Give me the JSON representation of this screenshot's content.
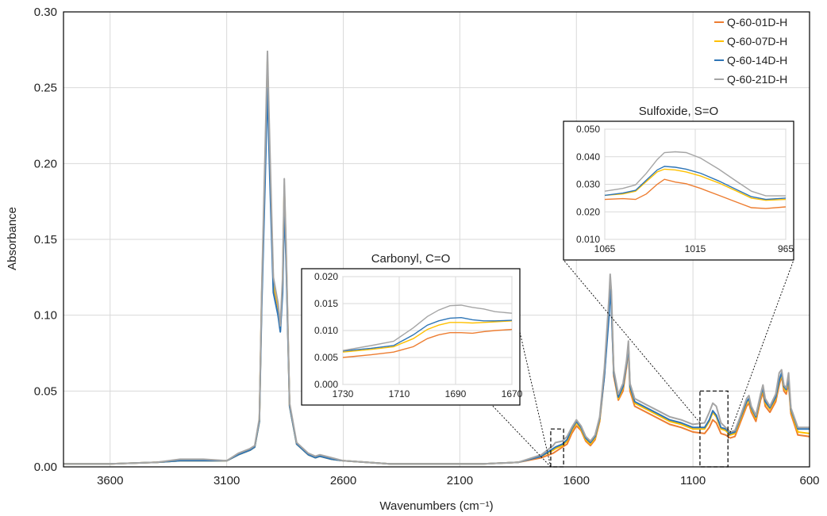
{
  "chart_data": {
    "type": "line",
    "xlabel": "Wavenumbers (cm⁻¹)",
    "ylabel": "Absorbance",
    "xlim": [
      3800,
      600
    ],
    "ylim": [
      0,
      0.3
    ],
    "xticks": [
      3600,
      3100,
      2600,
      2100,
      1600,
      1100,
      600
    ],
    "xtick_labels": [
      "3600",
      "3100",
      "2600",
      "2100",
      "1600",
      "1100",
      "600"
    ],
    "yticks": [
      0,
      0.05,
      0.1,
      0.15,
      0.2,
      0.25,
      0.3
    ],
    "ytick_labels": [
      "0.00",
      "0.05",
      "0.10",
      "0.15",
      "0.20",
      "0.25",
      "0.30"
    ],
    "grid": true,
    "legend_position": "top-right",
    "colors": [
      "#ED7D31",
      "#FFC000",
      "#2E75B6",
      "#A5A5A5"
    ],
    "series": [
      {
        "name": "Q-60-01D-H",
        "color": "#ED7D31",
        "x": [
          3800,
          3600,
          3400,
          3300,
          3200,
          3100,
          3050,
          3000,
          2980,
          2960,
          2950,
          2935,
          2925,
          2915,
          2900,
          2880,
          2870,
          2860,
          2853,
          2845,
          2830,
          2800,
          2750,
          2720,
          2700,
          2650,
          2600,
          2400,
          2200,
          2000,
          1850,
          1750,
          1700,
          1690,
          1660,
          1640,
          1620,
          1600,
          1580,
          1560,
          1540,
          1520,
          1500,
          1480,
          1460,
          1455,
          1450,
          1440,
          1420,
          1400,
          1385,
          1377,
          1370,
          1350,
          1300,
          1250,
          1200,
          1150,
          1100,
          1050,
          1030,
          1015,
          1000,
          980,
          960,
          940,
          920,
          900,
          870,
          860,
          850,
          830,
          810,
          800,
          790,
          770,
          745,
          730,
          720,
          710,
          700,
          690,
          680,
          650,
          600
        ],
        "y": [
          0.002,
          0.002,
          0.003,
          0.004,
          0.004,
          0.004,
          0.008,
          0.011,
          0.013,
          0.03,
          0.11,
          0.2,
          0.265,
          0.2,
          0.12,
          0.105,
          0.09,
          0.12,
          0.182,
          0.14,
          0.04,
          0.015,
          0.008,
          0.006,
          0.007,
          0.005,
          0.004,
          0.002,
          0.002,
          0.002,
          0.003,
          0.006,
          0.009,
          0.01,
          0.013,
          0.015,
          0.022,
          0.027,
          0.024,
          0.017,
          0.014,
          0.018,
          0.03,
          0.06,
          0.105,
          0.12,
          0.11,
          0.06,
          0.044,
          0.05,
          0.066,
          0.078,
          0.05,
          0.04,
          0.036,
          0.032,
          0.028,
          0.026,
          0.023,
          0.022,
          0.026,
          0.031,
          0.029,
          0.022,
          0.021,
          0.019,
          0.02,
          0.028,
          0.04,
          0.042,
          0.036,
          0.03,
          0.044,
          0.049,
          0.04,
          0.036,
          0.043,
          0.054,
          0.06,
          0.05,
          0.048,
          0.055,
          0.035,
          0.021,
          0.02
        ]
      },
      {
        "name": "Q-60-07D-H",
        "color": "#FFC000",
        "x": [
          3800,
          3600,
          3400,
          3300,
          3200,
          3100,
          3050,
          3000,
          2980,
          2960,
          2950,
          2935,
          2925,
          2915,
          2900,
          2880,
          2870,
          2860,
          2853,
          2845,
          2830,
          2800,
          2750,
          2720,
          2700,
          2650,
          2600,
          2400,
          2200,
          2000,
          1850,
          1750,
          1700,
          1690,
          1660,
          1640,
          1620,
          1600,
          1580,
          1560,
          1540,
          1520,
          1500,
          1480,
          1460,
          1455,
          1450,
          1440,
          1420,
          1400,
          1385,
          1377,
          1370,
          1350,
          1300,
          1250,
          1200,
          1150,
          1100,
          1050,
          1030,
          1015,
          1000,
          980,
          960,
          940,
          920,
          900,
          870,
          860,
          850,
          830,
          810,
          800,
          790,
          770,
          745,
          730,
          720,
          710,
          700,
          690,
          680,
          650,
          600
        ],
        "y": [
          0.002,
          0.002,
          0.003,
          0.004,
          0.004,
          0.004,
          0.008,
          0.011,
          0.013,
          0.03,
          0.112,
          0.202,
          0.268,
          0.202,
          0.121,
          0.106,
          0.091,
          0.121,
          0.185,
          0.141,
          0.04,
          0.015,
          0.008,
          0.006,
          0.007,
          0.005,
          0.004,
          0.002,
          0.002,
          0.002,
          0.003,
          0.007,
          0.011,
          0.012,
          0.014,
          0.017,
          0.024,
          0.029,
          0.025,
          0.018,
          0.015,
          0.019,
          0.031,
          0.062,
          0.108,
          0.122,
          0.112,
          0.062,
          0.045,
          0.052,
          0.068,
          0.08,
          0.052,
          0.042,
          0.038,
          0.034,
          0.03,
          0.028,
          0.025,
          0.025,
          0.03,
          0.036,
          0.033,
          0.025,
          0.024,
          0.021,
          0.022,
          0.03,
          0.042,
          0.044,
          0.038,
          0.032,
          0.046,
          0.051,
          0.042,
          0.038,
          0.045,
          0.056,
          0.061,
          0.052,
          0.05,
          0.057,
          0.037,
          0.023,
          0.022
        ]
      },
      {
        "name": "Q-60-14D-H",
        "color": "#2E75B6",
        "x": [
          3800,
          3600,
          3400,
          3300,
          3200,
          3100,
          3050,
          3000,
          2980,
          2960,
          2950,
          2935,
          2925,
          2915,
          2900,
          2880,
          2870,
          2860,
          2853,
          2845,
          2830,
          2800,
          2750,
          2720,
          2700,
          2650,
          2600,
          2400,
          2200,
          2000,
          1850,
          1750,
          1700,
          1690,
          1660,
          1640,
          1620,
          1600,
          1580,
          1560,
          1540,
          1520,
          1500,
          1480,
          1460,
          1455,
          1450,
          1440,
          1420,
          1400,
          1385,
          1377,
          1370,
          1350,
          1300,
          1250,
          1200,
          1150,
          1100,
          1050,
          1030,
          1015,
          1000,
          980,
          960,
          940,
          920,
          900,
          870,
          860,
          850,
          830,
          810,
          800,
          790,
          770,
          745,
          730,
          720,
          710,
          700,
          690,
          680,
          650,
          600
        ],
        "y": [
          0.002,
          0.002,
          0.003,
          0.004,
          0.004,
          0.004,
          0.008,
          0.011,
          0.013,
          0.03,
          0.105,
          0.19,
          0.25,
          0.19,
          0.115,
          0.1,
          0.089,
          0.115,
          0.172,
          0.135,
          0.04,
          0.015,
          0.008,
          0.006,
          0.007,
          0.005,
          0.004,
          0.002,
          0.002,
          0.002,
          0.003,
          0.007,
          0.012,
          0.013,
          0.015,
          0.018,
          0.025,
          0.03,
          0.026,
          0.019,
          0.016,
          0.02,
          0.032,
          0.06,
          0.1,
          0.117,
          0.106,
          0.062,
          0.046,
          0.053,
          0.068,
          0.08,
          0.053,
          0.043,
          0.039,
          0.035,
          0.031,
          0.029,
          0.026,
          0.026,
          0.031,
          0.037,
          0.034,
          0.026,
          0.025,
          0.022,
          0.023,
          0.031,
          0.043,
          0.045,
          0.039,
          0.033,
          0.047,
          0.052,
          0.043,
          0.039,
          0.046,
          0.057,
          0.062,
          0.053,
          0.051,
          0.058,
          0.038,
          0.025,
          0.025
        ]
      },
      {
        "name": "Q-60-21D-H",
        "color": "#A5A5A5",
        "x": [
          3800,
          3600,
          3400,
          3300,
          3200,
          3100,
          3050,
          3000,
          2980,
          2960,
          2950,
          2935,
          2925,
          2915,
          2900,
          2880,
          2870,
          2860,
          2853,
          2845,
          2830,
          2800,
          2750,
          2720,
          2700,
          2650,
          2600,
          2400,
          2200,
          2000,
          1850,
          1750,
          1700,
          1690,
          1660,
          1640,
          1620,
          1600,
          1580,
          1560,
          1540,
          1520,
          1500,
          1480,
          1460,
          1455,
          1450,
          1440,
          1420,
          1400,
          1385,
          1377,
          1370,
          1350,
          1300,
          1250,
          1200,
          1150,
          1100,
          1050,
          1030,
          1015,
          1000,
          980,
          960,
          940,
          920,
          900,
          870,
          860,
          850,
          830,
          810,
          800,
          790,
          770,
          745,
          730,
          720,
          710,
          700,
          690,
          680,
          650,
          600
        ],
        "y": [
          0.002,
          0.002,
          0.003,
          0.005,
          0.005,
          0.004,
          0.009,
          0.012,
          0.014,
          0.032,
          0.115,
          0.21,
          0.274,
          0.21,
          0.125,
          0.108,
          0.093,
          0.125,
          0.19,
          0.145,
          0.042,
          0.016,
          0.009,
          0.007,
          0.008,
          0.006,
          0.004,
          0.002,
          0.002,
          0.002,
          0.003,
          0.008,
          0.014,
          0.016,
          0.017,
          0.02,
          0.026,
          0.031,
          0.027,
          0.02,
          0.017,
          0.021,
          0.033,
          0.065,
          0.112,
          0.127,
          0.116,
          0.064,
          0.048,
          0.055,
          0.07,
          0.083,
          0.055,
          0.045,
          0.041,
          0.037,
          0.033,
          0.031,
          0.028,
          0.029,
          0.036,
          0.042,
          0.04,
          0.029,
          0.026,
          0.023,
          0.024,
          0.032,
          0.045,
          0.047,
          0.04,
          0.034,
          0.048,
          0.054,
          0.045,
          0.04,
          0.048,
          0.062,
          0.064,
          0.054,
          0.052,
          0.062,
          0.039,
          0.026,
          0.026
        ]
      }
    ],
    "insets": [
      {
        "title": "Carbonyl, C=O",
        "xlim": [
          1730,
          1670
        ],
        "ylim": [
          0,
          0.02
        ],
        "xticks": [
          1730,
          1710,
          1690,
          1670
        ],
        "xtick_labels": [
          "1730",
          "1710",
          "1690",
          "1670"
        ],
        "yticks": [
          0,
          0.005,
          0.01,
          0.015,
          0.02
        ],
        "ytick_labels": [
          "0.000",
          "0.005",
          "0.010",
          "0.015",
          "0.020"
        ],
        "zoom_box": {
          "x": [
            1710,
            1655
          ],
          "y": [
            0,
            0.025
          ]
        },
        "series": [
          {
            "name": "Q-60-01D-H",
            "x": [
              1730,
              1720,
              1712,
              1705,
              1700,
              1696,
              1692,
              1688,
              1684,
              1680,
              1676,
              1670
            ],
            "y": [
              0.005,
              0.0055,
              0.006,
              0.007,
              0.0085,
              0.0092,
              0.0096,
              0.0096,
              0.0095,
              0.0098,
              0.01,
              0.0102
            ]
          },
          {
            "name": "Q-60-07D-H",
            "x": [
              1730,
              1720,
              1712,
              1705,
              1700,
              1696,
              1692,
              1688,
              1684,
              1680,
              1676,
              1670
            ],
            "y": [
              0.006,
              0.0065,
              0.007,
              0.0085,
              0.0102,
              0.011,
              0.0115,
              0.0115,
              0.0114,
              0.0115,
              0.0116,
              0.0118
            ]
          },
          {
            "name": "Q-60-14D-H",
            "x": [
              1730,
              1720,
              1712,
              1705,
              1700,
              1696,
              1692,
              1688,
              1684,
              1680,
              1676,
              1670
            ],
            "y": [
              0.0062,
              0.0067,
              0.0072,
              0.0092,
              0.011,
              0.0118,
              0.0123,
              0.0124,
              0.012,
              0.0118,
              0.0118,
              0.0119
            ]
          },
          {
            "name": "Q-60-21D-H",
            "x": [
              1730,
              1720,
              1712,
              1705,
              1700,
              1696,
              1692,
              1688,
              1684,
              1680,
              1676,
              1670
            ],
            "y": [
              0.0063,
              0.0072,
              0.008,
              0.0105,
              0.0126,
              0.0138,
              0.0146,
              0.0147,
              0.0143,
              0.014,
              0.0135,
              0.0132
            ]
          }
        ]
      },
      {
        "title": "Sulfoxide, S=O",
        "xlim": [
          1065,
          965
        ],
        "ylim": [
          0.01,
          0.05
        ],
        "xticks": [
          1065,
          1015,
          965
        ],
        "xtick_labels": [
          "1065",
          "1015",
          "965"
        ],
        "yticks": [
          0.01,
          0.02,
          0.03,
          0.04,
          0.05
        ],
        "ytick_labels": [
          "0.010",
          "0.020",
          "0.030",
          "0.040",
          "0.050"
        ],
        "zoom_box": {
          "x": [
            1070,
            950
          ],
          "y": [
            0,
            0.05
          ]
        },
        "series": [
          {
            "name": "Q-60-01D-H",
            "x": [
              1065,
              1055,
              1048,
              1042,
              1036,
              1032,
              1026,
              1020,
              1012,
              1002,
              992,
              984,
              976,
              965
            ],
            "y": [
              0.0245,
              0.0248,
              0.0245,
              0.0265,
              0.03,
              0.0318,
              0.0308,
              0.0302,
              0.0285,
              0.026,
              0.0235,
              0.0215,
              0.0212,
              0.0218
            ]
          },
          {
            "name": "Q-60-07D-H",
            "x": [
              1065,
              1055,
              1048,
              1042,
              1036,
              1032,
              1026,
              1020,
              1012,
              1002,
              992,
              984,
              976,
              965
            ],
            "y": [
              0.026,
              0.0265,
              0.0275,
              0.031,
              0.0345,
              0.0355,
              0.0352,
              0.0345,
              0.033,
              0.0305,
              0.0275,
              0.025,
              0.0242,
              0.0245
            ]
          },
          {
            "name": "Q-60-14D-H",
            "x": [
              1065,
              1055,
              1048,
              1042,
              1036,
              1032,
              1026,
              1020,
              1012,
              1002,
              992,
              984,
              976,
              965
            ],
            "y": [
              0.026,
              0.0268,
              0.0278,
              0.0315,
              0.0352,
              0.0365,
              0.0362,
              0.0355,
              0.034,
              0.0312,
              0.028,
              0.0255,
              0.0245,
              0.025
            ]
          },
          {
            "name": "Q-60-21D-H",
            "x": [
              1065,
              1055,
              1048,
              1042,
              1036,
              1032,
              1026,
              1020,
              1012,
              1002,
              992,
              984,
              976,
              965
            ],
            "y": [
              0.0275,
              0.0285,
              0.0298,
              0.034,
              0.039,
              0.0415,
              0.0418,
              0.0415,
              0.0395,
              0.0355,
              0.031,
              0.0275,
              0.0258,
              0.0258
            ]
          }
        ]
      }
    ]
  }
}
